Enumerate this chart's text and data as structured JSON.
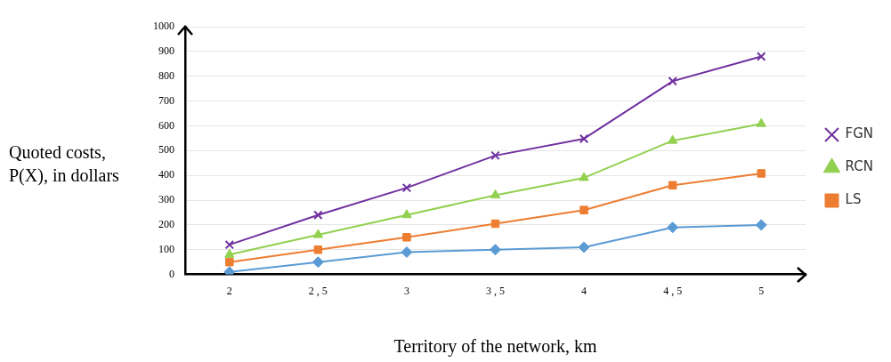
{
  "chart_data": {
    "type": "line",
    "xlabel": "Territory of the network, km",
    "ylabel": "Quoted costs, P(X), in dollars",
    "categories": [
      "2",
      "2 , 5",
      "3",
      "3 , 5",
      "4",
      "4 , 5",
      "5"
    ],
    "series": [
      {
        "name": "FGN",
        "color": "#7030a0",
        "marker": "cross",
        "values": [
          120,
          240,
          350,
          480,
          548,
          780,
          880
        ]
      },
      {
        "name": "RCN",
        "color": "#92d050",
        "marker": "triangle",
        "values": [
          80,
          160,
          240,
          320,
          390,
          540,
          608
        ]
      },
      {
        "name": "LS",
        "color": "#ed7d31",
        "marker": "square",
        "values": [
          50,
          100,
          150,
          205,
          260,
          360,
          408
        ]
      },
      {
        "color": "#5b9bd5",
        "marker": "diamond",
        "values": [
          10,
          50,
          90,
          100,
          110,
          190,
          200
        ]
      }
    ],
    "ylim": [
      0,
      1000
    ],
    "yticks": [
      0,
      100,
      200,
      300,
      400,
      500,
      600,
      700,
      800,
      900,
      1000
    ],
    "grid": "y",
    "legend": "right"
  }
}
